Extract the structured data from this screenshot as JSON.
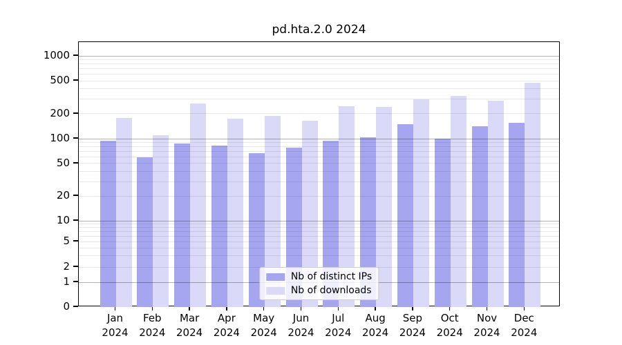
{
  "chart_data": {
    "type": "bar",
    "title": "pd.hta.2.0 2024",
    "categories": [
      "Jan",
      "Feb",
      "Mar",
      "Apr",
      "May",
      "Jun",
      "Jul",
      "Aug",
      "Sep",
      "Oct",
      "Nov",
      "Dec"
    ],
    "x_year_label": "2024",
    "series": [
      {
        "name": "Nb of distinct IPs",
        "color": "#a5a5f0",
        "values": [
          94,
          59,
          88,
          83,
          66,
          78,
          94,
          104,
          150,
          100,
          140,
          155
        ]
      },
      {
        "name": "Nb of downloads",
        "color": "#dadaf8",
        "values": [
          178,
          110,
          265,
          175,
          190,
          165,
          245,
          240,
          300,
          330,
          290,
          470
        ]
      }
    ],
    "y_ticks": [
      1000,
      500,
      200,
      100,
      50,
      20,
      10,
      5,
      2,
      1,
      0
    ],
    "y_scale": "log",
    "ylim": [
      0,
      1450
    ],
    "grid": "horizontal log gridlines, majors at powers of 10",
    "legend_position": "lower center"
  }
}
